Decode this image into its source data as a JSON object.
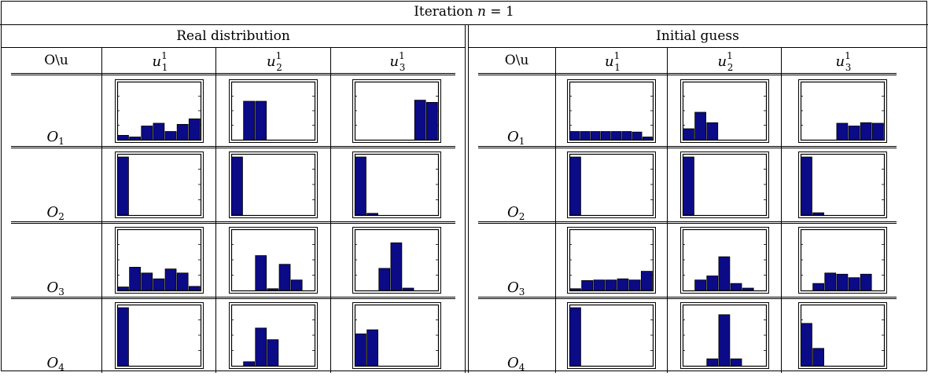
{
  "title": {
    "prefix": "Iteration ",
    "variable": "n",
    "equals": " = ",
    "value": "1"
  },
  "corner_header": "O\\u",
  "column_symbol": "u",
  "columns": [
    {
      "sub": "1",
      "sup": "1"
    },
    {
      "sub": "2",
      "sup": "1"
    },
    {
      "sub": "3",
      "sup": "1"
    }
  ],
  "row_symbol": "O",
  "rows": [
    "1",
    "2",
    "3",
    "4"
  ],
  "colors": {
    "bar": "#0b0b87"
  },
  "chart_data": [
    {
      "type": "bar",
      "title": "Real distribution",
      "grid": false,
      "cells": [
        [
          [
            0.08,
            0.05,
            0.25,
            0.3,
            0.15,
            0.28,
            0.38
          ],
          [
            0,
            0.7,
            0.7,
            0,
            0,
            0,
            0
          ],
          [
            0,
            0,
            0,
            0,
            0,
            0.72,
            0.68
          ]
        ],
        [
          [
            1,
            0,
            0,
            0,
            0,
            0,
            0
          ],
          [
            1,
            0,
            0,
            0,
            0,
            0,
            0
          ],
          [
            1,
            0.03,
            0,
            0,
            0,
            0,
            0
          ]
        ],
        [
          [
            0.06,
            0.4,
            0.3,
            0.2,
            0.37,
            0.3,
            0.07
          ],
          [
            0,
            0,
            0.6,
            0.03,
            0.45,
            0.18,
            0
          ],
          [
            0,
            0,
            0.38,
            0.82,
            0.04,
            0,
            0
          ]
        ],
        [
          [
            1,
            0,
            0,
            0,
            0,
            0,
            0
          ],
          [
            0,
            0.07,
            0.65,
            0.45,
            0,
            0,
            0
          ],
          [
            0.55,
            0.62,
            0,
            0,
            0,
            0,
            0
          ]
        ]
      ]
    },
    {
      "type": "bar",
      "title": "Initial guess",
      "grid": false,
      "cells": [
        [
          [
            0.15,
            0.15,
            0.15,
            0.15,
            0.15,
            0.15,
            0.14,
            0.05
          ],
          [
            0.2,
            0.5,
            0.31,
            0,
            0,
            0,
            0
          ],
          [
            0,
            0,
            0,
            0.3,
            0.25,
            0.31,
            0.3
          ]
        ],
        [
          [
            1,
            0,
            0,
            0,
            0,
            0,
            0
          ],
          [
            1,
            0,
            0,
            0,
            0,
            0,
            0
          ],
          [
            1,
            0.04,
            0,
            0,
            0,
            0,
            0
          ]
        ],
        [
          [
            0.03,
            0.17,
            0.18,
            0.18,
            0.2,
            0.18,
            0.33
          ],
          [
            0,
            0.18,
            0.25,
            0.58,
            0.12,
            0.04,
            0
          ],
          [
            0,
            0.12,
            0.3,
            0.28,
            0.22,
            0.28,
            0
          ]
        ],
        [
          [
            1,
            0,
            0,
            0,
            0,
            0,
            0
          ],
          [
            0,
            0,
            0.12,
            0.88,
            0.12,
            0,
            0
          ],
          [
            0.73,
            0.3,
            0,
            0,
            0,
            0,
            0
          ]
        ]
      ]
    }
  ]
}
